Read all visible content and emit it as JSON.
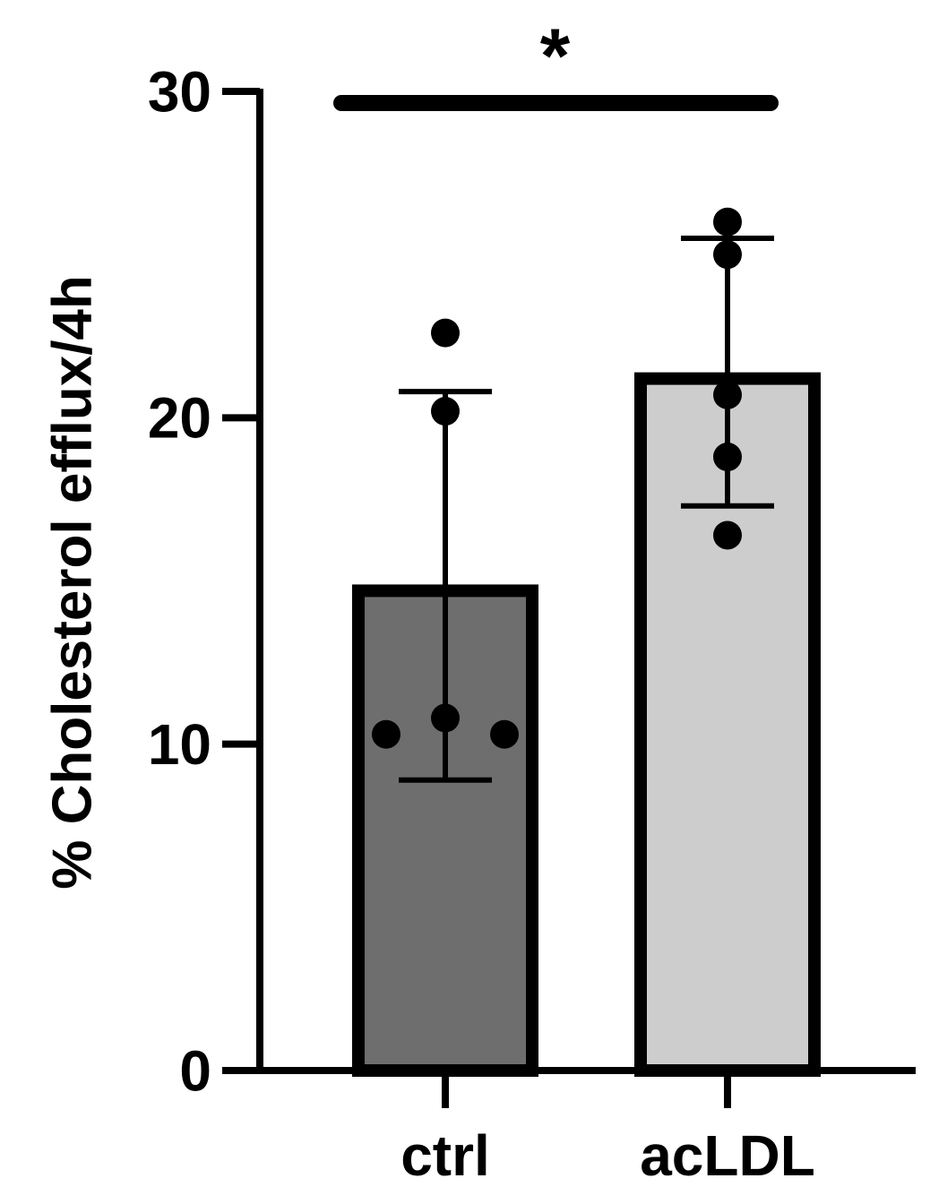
{
  "chart_data": {
    "type": "bar",
    "title": "",
    "xlabel": "",
    "ylabel": "% Cholesterol efflux/4h",
    "ylim": [
      0,
      30
    ],
    "yticks": [
      0,
      10,
      20,
      30
    ],
    "ytick_labels": [
      "0",
      "10",
      "20",
      "30"
    ],
    "categories": [
      "ctrl",
      "acLDL"
    ],
    "values": [
      14.7,
      21.2
    ],
    "error_upper": [
      20.8,
      25.5
    ],
    "error_lower": [
      8.9,
      17.3
    ],
    "bar_colors": [
      "#6e6e6e",
      "#cdcdcd"
    ],
    "points": [
      [
        22.6,
        20.2,
        10.8,
        10.3,
        10.3
      ],
      [
        26.0,
        25.0,
        20.7,
        18.8,
        16.4
      ]
    ],
    "significance": {
      "label": "*",
      "from": "ctrl",
      "to": "acLDL"
    },
    "grid": false
  }
}
